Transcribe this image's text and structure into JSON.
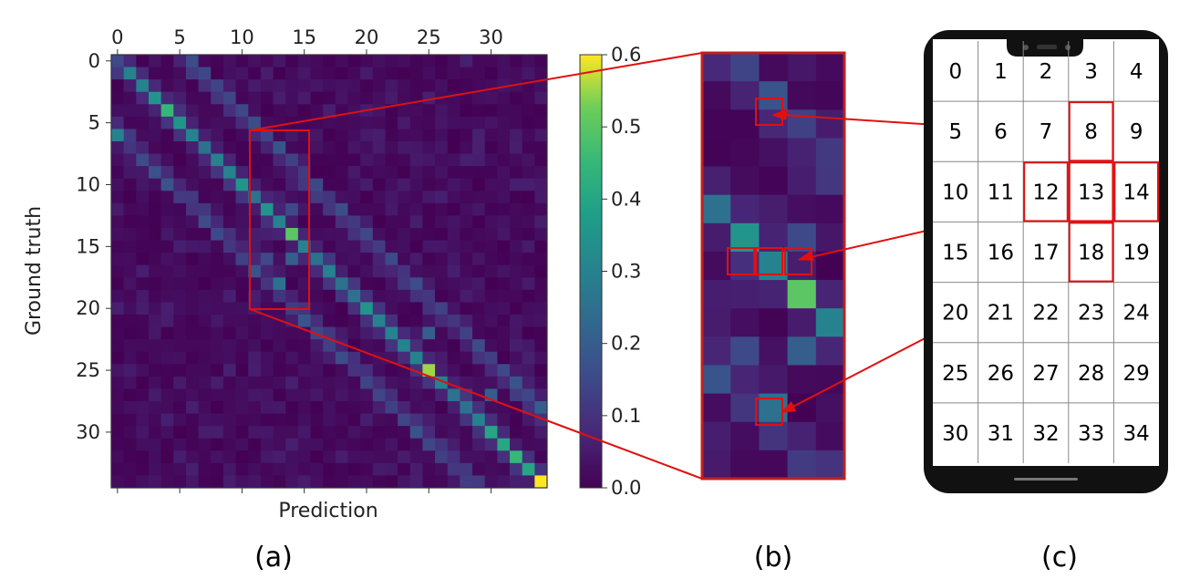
{
  "chart_data": {
    "type": "heatmap",
    "title": "",
    "xlabel": "Prediction",
    "ylabel": "Ground truth",
    "n_classes": 35,
    "x_ticks": [
      0,
      5,
      10,
      15,
      20,
      25,
      30
    ],
    "y_ticks": [
      0,
      5,
      10,
      15,
      20,
      25,
      30
    ],
    "colorbar": {
      "min": 0.0,
      "max": 0.6,
      "ticks": [
        "0.0",
        "0.1",
        "0.2",
        "0.3",
        "0.4",
        "0.5",
        "0.6"
      ]
    },
    "grid": false,
    "diagonal": [
      0.15,
      0.3,
      0.3,
      0.35,
      0.45,
      0.35,
      0.3,
      0.25,
      0.3,
      0.3,
      0.35,
      0.25,
      0.35,
      0.3,
      0.5,
      0.3,
      0.25,
      0.3,
      0.25,
      0.25,
      0.35,
      0.3,
      0.3,
      0.3,
      0.3,
      0.55,
      0.3,
      0.25,
      0.25,
      0.3,
      0.4,
      0.4,
      0.45,
      0.4,
      0.6
    ],
    "notable_offdiagonal": [
      {
        "row": 6,
        "col": 0,
        "value": 0.3
      },
      {
        "row": 12,
        "col": 14,
        "value": 0.15
      },
      {
        "row": 16,
        "col": 12,
        "value": 0.15
      },
      {
        "row": 16,
        "col": 14,
        "value": 0.2
      },
      {
        "row": 18,
        "col": 13,
        "value": 0.25
      },
      {
        "row": 22,
        "col": 25,
        "value": 0.2
      },
      {
        "row": 28,
        "col": 34,
        "value": 0.2
      },
      {
        "row": 27,
        "col": 30,
        "value": 0.2
      }
    ],
    "zoom_region": {
      "col_start": 11,
      "col_end": 15,
      "row_start": 6,
      "row_end": 20
    }
  },
  "panels": {
    "a": "(a)",
    "b": "(b)",
    "c": "(c)"
  },
  "phone_grid": {
    "rows": [
      [
        "0",
        "1",
        "2",
        "3",
        "4"
      ],
      [
        "5",
        "6",
        "7",
        "8",
        "9"
      ],
      [
        "10",
        "11",
        "12",
        "13",
        "14"
      ],
      [
        "15",
        "16",
        "17",
        "18",
        "19"
      ],
      [
        "20",
        "21",
        "22",
        "23",
        "24"
      ],
      [
        "25",
        "26",
        "27",
        "28",
        "29"
      ],
      [
        "30",
        "31",
        "32",
        "33",
        "34"
      ]
    ],
    "highlighted": [
      "8",
      "12",
      "13",
      "14",
      "18"
    ]
  },
  "colors": {
    "annotation": "#e01010",
    "phone_body": "#111111"
  }
}
